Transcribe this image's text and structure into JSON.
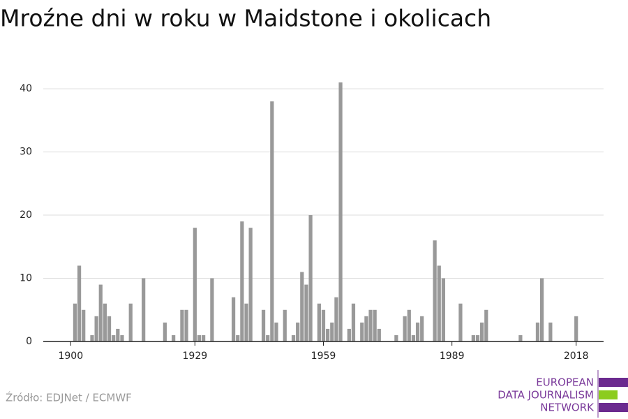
{
  "chart_data": {
    "type": "bar",
    "title": "Mroźne dni w roku w Maidstone i okolicach",
    "source": "Źródło: EDJNet / ECMWF",
    "logo": [
      "EUROPEAN",
      "DATA JOURNALISM",
      "NETWORK"
    ],
    "color": "#999999",
    "x": [
      1901,
      1902,
      1903,
      1905,
      1906,
      1907,
      1908,
      1909,
      1910,
      1911,
      1912,
      1914,
      1917,
      1922,
      1924,
      1926,
      1927,
      1929,
      1930,
      1931,
      1933,
      1938,
      1939,
      1940,
      1941,
      1942,
      1945,
      1946,
      1947,
      1948,
      1950,
      1952,
      1953,
      1954,
      1955,
      1956,
      1958,
      1959,
      1960,
      1961,
      1962,
      1963,
      1965,
      1966,
      1968,
      1969,
      1970,
      1971,
      1972,
      1976,
      1978,
      1979,
      1980,
      1981,
      1982,
      1985,
      1986,
      1987,
      1991,
      1994,
      1995,
      1996,
      1997,
      2005,
      2009,
      2010,
      2012,
      2018
    ],
    "values": [
      6,
      12,
      5,
      1,
      4,
      9,
      6,
      4,
      1,
      2,
      1,
      6,
      10,
      3,
      1,
      5,
      5,
      18,
      1,
      1,
      10,
      7,
      1,
      19,
      6,
      18,
      5,
      1,
      38,
      3,
      5,
      1,
      3,
      11,
      9,
      20,
      6,
      5,
      2,
      3,
      7,
      41,
      2,
      6,
      3,
      4,
      5,
      5,
      2,
      1,
      4,
      5,
      1,
      3,
      4,
      16,
      12,
      10,
      6,
      1,
      1,
      3,
      5,
      1,
      3,
      10,
      3,
      4
    ],
    "xlim": [
      1893.6,
      2024.4
    ],
    "xticks": [
      1900,
      1929,
      1959,
      1989,
      2018
    ],
    "ylim": [
      0,
      42
    ],
    "yticks": [
      0,
      10,
      20,
      30,
      40
    ],
    "grid": true
  }
}
